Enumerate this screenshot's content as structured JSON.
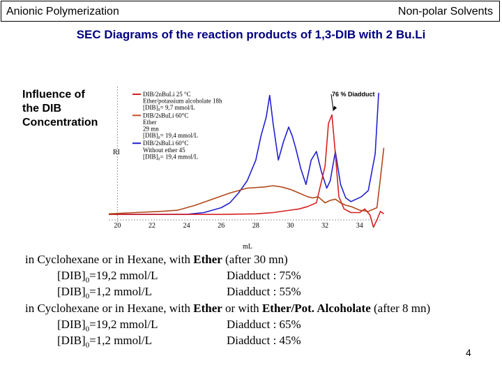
{
  "header": {
    "left": "Anionic Polymerization",
    "right": "Non-polar Solvents"
  },
  "subtitle": "SEC Diagrams of the reaction products of 1,3-DIB with 2 Bu.Li",
  "side_label": [
    "Influence of",
    "the DIB",
    "Concentration"
  ],
  "figure": {
    "y_label": "RI",
    "x_label": "mL",
    "x_ticks": [
      "20",
      "22",
      "24",
      "26",
      "28",
      "30",
      "32",
      "34"
    ],
    "annotation": "76 % Diadduct",
    "legend": [
      {
        "color": "#d62020",
        "lines": [
          "DIB/2nBuLi 25 °C",
          "Ether/potassium alcoholate  18h",
          "[DIB]₀= 9,7 mmol/L"
        ]
      },
      {
        "color": "#c05020",
        "lines": [
          "DIB/2sBuLi 60°C",
          "Ether",
          "29 mn",
          "[DIB]₀= 19,4 mmol/L"
        ]
      },
      {
        "color": "#2020d0",
        "lines": [
          "DIB/2sBuLi 60°C",
          "Without ether  45",
          "[DIB]₀= 19,4 mmol/L"
        ]
      }
    ]
  },
  "chart_data": {
    "type": "line",
    "xlabel": "mL",
    "ylabel": "RI",
    "xlim": [
      19.5,
      35.5
    ],
    "ylim": [
      0,
      1.0
    ],
    "series": [
      {
        "color": "#2020d0",
        "x": [
          19.5,
          24,
          25,
          26,
          26.5,
          27,
          27.5,
          28,
          28.3,
          28.6,
          28.8,
          29,
          29.3,
          29.6,
          29.9,
          30.1,
          30.3,
          30.6,
          30.9,
          31.2,
          31.5,
          31.8,
          32.1,
          32.3,
          32.6,
          32.9,
          33.2,
          33.5,
          33.8,
          34.1,
          34.5,
          34.9,
          35.1
        ],
        "y": [
          0.005,
          0.005,
          0.02,
          0.06,
          0.1,
          0.18,
          0.28,
          0.45,
          0.65,
          0.8,
          0.98,
          0.75,
          0.45,
          0.6,
          0.72,
          0.65,
          0.55,
          0.38,
          0.25,
          0.45,
          0.52,
          0.35,
          0.22,
          0.28,
          0.52,
          0.25,
          0.14,
          0.11,
          0.13,
          0.15,
          0.2,
          0.5,
          1.0
        ]
      },
      {
        "color": "#d62020",
        "x": [
          19.5,
          26,
          28,
          29,
          30,
          30.5,
          31,
          31.5,
          32,
          32.2,
          32.4,
          32.6,
          32.8,
          33.1,
          33.5,
          34,
          34.3,
          34.6,
          34.8,
          35,
          35.2,
          35.4
        ],
        "y": [
          0.005,
          0.005,
          0.01,
          0.02,
          0.04,
          0.05,
          0.07,
          0.1,
          0.4,
          0.75,
          0.82,
          0.5,
          0.15,
          0.05,
          0.02,
          0.02,
          0.05,
          0.0,
          -0.1,
          -0.04,
          0.03,
          0.01
        ]
      },
      {
        "color": "#b04818",
        "x": [
          19.5,
          21,
          22.5,
          23.5,
          24.5,
          25.5,
          26.5,
          27.5,
          28.5,
          29,
          29.5,
          30,
          30.5,
          31,
          31.3,
          31.6,
          32,
          32.3,
          32.6,
          32.9,
          33.2,
          33.5,
          34,
          34.5,
          35,
          35.2,
          35.4
        ],
        "y": [
          0.01,
          0.02,
          0.03,
          0.04,
          0.08,
          0.13,
          0.18,
          0.22,
          0.23,
          0.24,
          0.23,
          0.21,
          0.18,
          0.15,
          0.14,
          0.15,
          0.1,
          0.12,
          0.13,
          0.1,
          0.08,
          0.07,
          0.04,
          0.03,
          0.06,
          0.3,
          0.55
        ]
      }
    ]
  },
  "notes": {
    "line1": {
      "pre": "in Cyclohexane or in Hexane, with ",
      "bold": "Ether",
      "post": " (after 30 mn)"
    },
    "line2": {
      "dib": "[DIB]",
      "sub": "0",
      "val": "=19,2 mmol/L",
      "dia": "Diadduct : 75%"
    },
    "line3": {
      "dib": "[DIB]",
      "sub": "0",
      "val": "=1,2 mmol/L",
      "dia": "Diadduct : 55%"
    },
    "line4": {
      "pre": "in Cyclohexane or in Hexane, with ",
      "bold1": "Ether",
      "mid": " or with ",
      "bold2": "Ether/Pot. Alcoholate",
      "post": " (after 8 mn)"
    },
    "line5": {
      "dib": "[DIB]",
      "sub": "0",
      "val": "=19,2 mmol/L",
      "dia": "Diadduct : 65%"
    },
    "line6": {
      "dib": "[DIB]",
      "sub": "0",
      "val": "=1,2 mmol/L",
      "dia": "Diadduct : 45%"
    }
  },
  "page_number": "4"
}
